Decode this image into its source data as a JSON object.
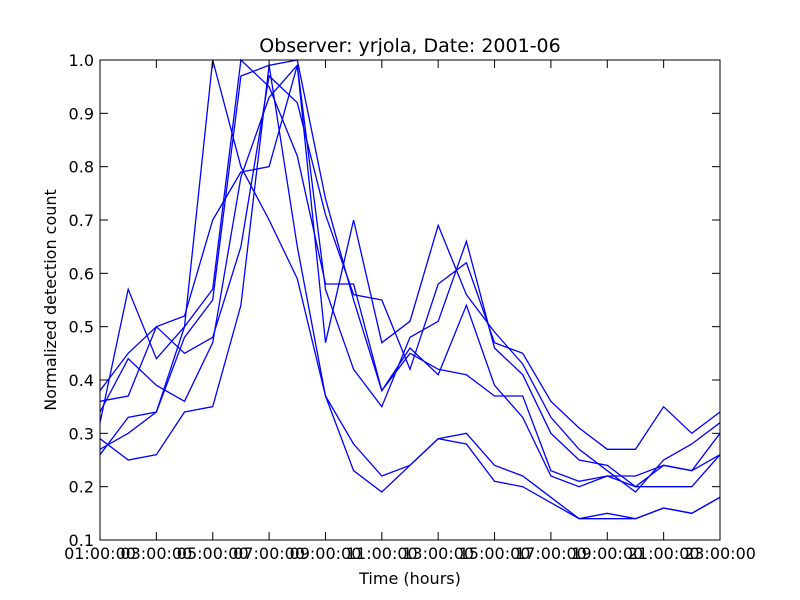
{
  "chart_data": {
    "type": "line",
    "title": "Observer: yrjola, Date: 2001-06",
    "xlabel": "Time (hours)",
    "ylabel": "Normalized detection count",
    "xlim": [
      1,
      23
    ],
    "ylim": [
      0.1,
      1.0
    ],
    "x_tick_values": [
      1,
      3,
      5,
      7,
      9,
      11,
      13,
      15,
      17,
      19,
      21,
      23
    ],
    "x_tick_labels": [
      "01:00:00",
      "03:00:00",
      "05:00:00",
      "07:00:00",
      "09:00:00",
      "11:00:00",
      "13:00:00",
      "15:00:00",
      "17:00:00",
      "19:00:00",
      "21:00:00",
      "23:00:00"
    ],
    "y_tick_values": [
      0.1,
      0.2,
      0.3,
      0.4,
      0.5,
      0.6,
      0.7,
      0.8,
      0.9,
      1.0
    ],
    "y_tick_labels": [
      "0.1",
      "0.2",
      "0.3",
      "0.4",
      "0.5",
      "0.6",
      "0.7",
      "0.8",
      "0.9",
      "1.0"
    ],
    "grid": false,
    "line_color": "#0000ff",
    "x": [
      1,
      2,
      3,
      4,
      5,
      6,
      7,
      8,
      9,
      10,
      11,
      12,
      13,
      14,
      15,
      16,
      17,
      18,
      19,
      20,
      21,
      22,
      23
    ],
    "series": [
      {
        "values": [
          0.27,
          0.3,
          0.34,
          0.5,
          1.0,
          0.8,
          0.7,
          0.59,
          0.37,
          0.23,
          0.19,
          0.24,
          0.29,
          0.28,
          0.21,
          0.2,
          0.17,
          0.14,
          0.14,
          0.14,
          0.16,
          0.15,
          0.18
        ]
      },
      {
        "values": [
          0.26,
          0.33,
          0.34,
          0.48,
          0.55,
          0.97,
          0.99,
          0.65,
          0.37,
          0.28,
          0.22,
          0.24,
          0.29,
          0.3,
          0.24,
          0.22,
          0.18,
          0.14,
          0.15,
          0.14,
          0.16,
          0.15,
          0.18
        ]
      },
      {
        "values": [
          0.29,
          0.25,
          0.26,
          0.34,
          0.35,
          0.54,
          0.99,
          1.0,
          0.74,
          0.55,
          0.38,
          0.45,
          0.42,
          0.41,
          0.37,
          0.37,
          0.23,
          0.21,
          0.22,
          0.22,
          0.24,
          0.23,
          0.26
        ]
      },
      {
        "values": [
          0.32,
          0.57,
          0.44,
          0.5,
          0.57,
          1.0,
          0.95,
          0.82,
          0.58,
          0.58,
          0.38,
          0.46,
          0.41,
          0.54,
          0.39,
          0.33,
          0.22,
          0.2,
          0.22,
          0.2,
          0.2,
          0.2,
          0.26
        ]
      },
      {
        "values": [
          0.38,
          0.45,
          0.5,
          0.52,
          0.7,
          0.79,
          0.8,
          0.99,
          0.57,
          0.42,
          0.35,
          0.48,
          0.51,
          0.66,
          0.46,
          0.41,
          0.3,
          0.25,
          0.24,
          0.2,
          0.24,
          0.23,
          0.3
        ]
      },
      {
        "values": [
          0.36,
          0.37,
          0.5,
          0.45,
          0.48,
          0.65,
          0.97,
          0.92,
          0.71,
          0.56,
          0.55,
          0.42,
          0.58,
          0.62,
          0.47,
          0.45,
          0.36,
          0.31,
          0.27,
          0.27,
          0.35,
          0.3,
          0.34
        ]
      },
      {
        "values": [
          0.34,
          0.44,
          0.39,
          0.36,
          0.47,
          0.78,
          0.93,
          0.99,
          0.47,
          0.7,
          0.47,
          0.51,
          0.69,
          0.56,
          0.49,
          0.43,
          0.33,
          0.27,
          0.23,
          0.19,
          0.25,
          0.28,
          0.32
        ]
      }
    ]
  }
}
